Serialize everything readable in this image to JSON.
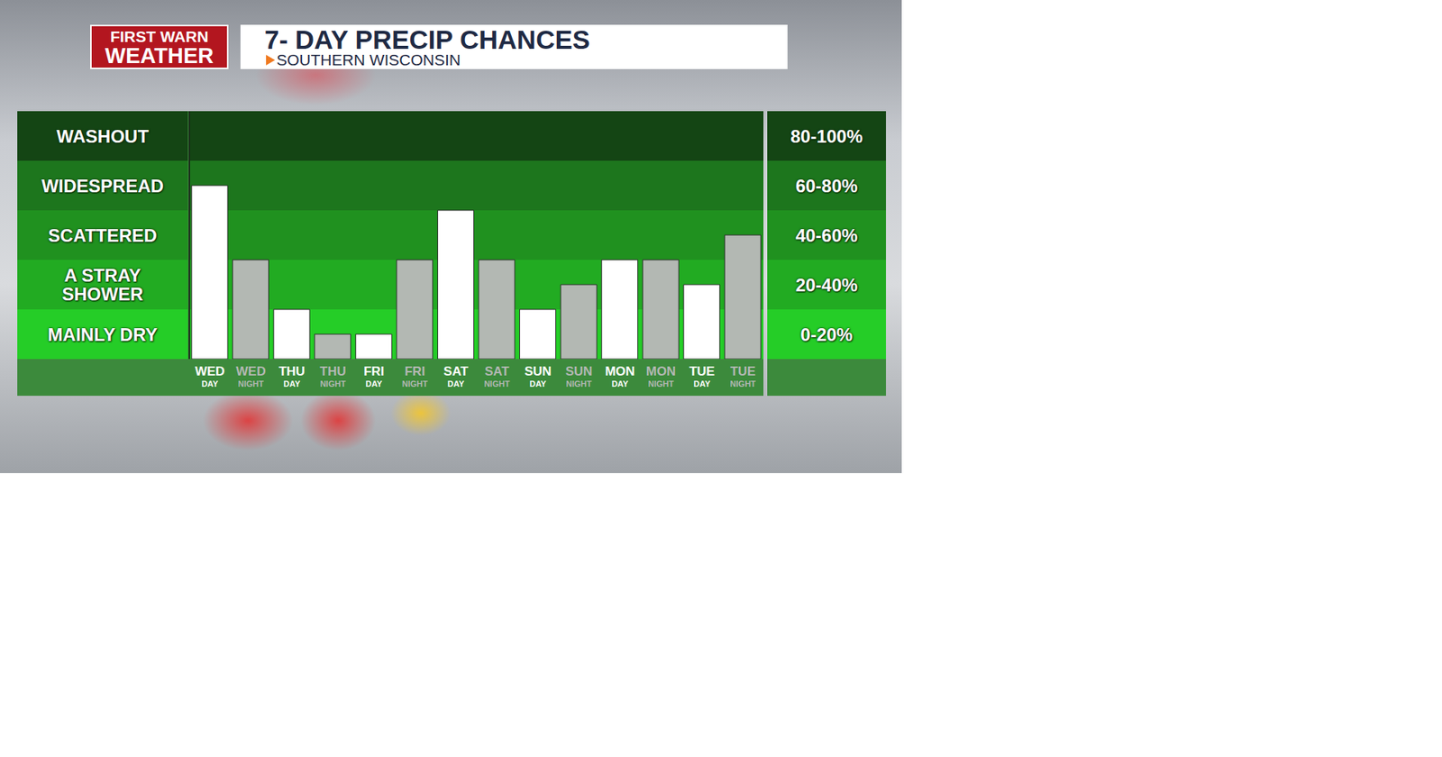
{
  "chart_data": {
    "type": "bar",
    "title": "7- DAY PRECIP CHANCES",
    "subtitle": "SOUTHERN WISCONSIN",
    "logo": [
      "FIRST WARN",
      "WEATHER"
    ],
    "categories": [
      "WED DAY",
      "WED NIGHT",
      "THU DAY",
      "THU NIGHT",
      "FRI DAY",
      "FRI NIGHT",
      "SAT DAY",
      "SAT NIGHT",
      "SUN DAY",
      "SUN NIGHT",
      "MON DAY",
      "MON NIGHT",
      "TUE DAY",
      "TUE NIGHT"
    ],
    "values": [
      70,
      40,
      20,
      10,
      10,
      40,
      60,
      40,
      20,
      30,
      40,
      40,
      30,
      50
    ],
    "colors": [
      "#ffffff",
      "#b3b8b3",
      "#ffffff",
      "#b3b8b3",
      "#ffffff",
      "#b3b8b3",
      "#ffffff",
      "#b3b8b3",
      "#ffffff",
      "#b3b8b3",
      "#ffffff",
      "#b3b8b3",
      "#ffffff",
      "#b3b8b3"
    ],
    "ylim": [
      0,
      100
    ],
    "yticks": [
      0,
      20,
      40,
      60,
      80,
      100
    ],
    "tick_labels": "x",
    "grid": false,
    "bands": [
      {
        "label": "WASHOUT",
        "range_label": "80-100%",
        "from": 80,
        "to": 100,
        "color": "#144514"
      },
      {
        "label": "WIDESPREAD",
        "range_label": "60-80%",
        "from": 60,
        "to": 80,
        "color": "#1d761d"
      },
      {
        "label": "SCATTERED",
        "range_label": "40-60%",
        "from": 40,
        "to": 60,
        "color": "#20911f"
      },
      {
        "label": "A STRAY SHOWER",
        "range_label": "20-40%",
        "from": 20,
        "to": 40,
        "color": "#22ab22"
      },
      {
        "label": "MAINLY DRY",
        "range_label": "0-20%",
        "from": 0,
        "to": 20,
        "color": "#25cd27"
      }
    ]
  }
}
